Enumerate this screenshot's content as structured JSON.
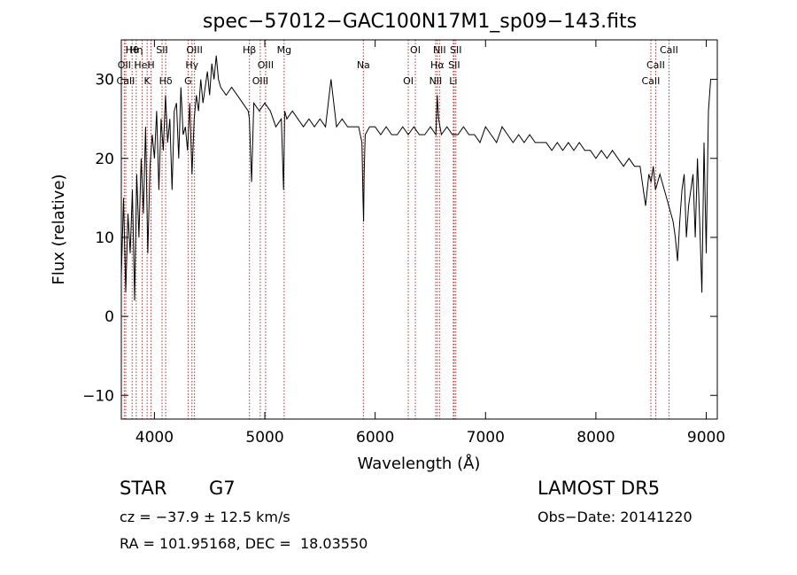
{
  "chart_data": {
    "type": "line",
    "title": "spec−57012−GAC100N17M1_sp09−143.fits",
    "xlabel": "Wavelength (Å)",
    "ylabel": "Flux (relative)",
    "xlim": [
      3700,
      9100
    ],
    "ylim": [
      -13,
      35
    ],
    "x_ticks": [
      4000,
      5000,
      6000,
      7000,
      8000,
      9000
    ],
    "y_ticks": [
      -10,
      0,
      10,
      20,
      30
    ],
    "grid": false,
    "line_color": "#000000",
    "marker_color": "#b03030",
    "series": [
      {
        "x": [
          3700,
          3720,
          3740,
          3760,
          3780,
          3800,
          3820,
          3840,
          3860,
          3880,
          3900,
          3920,
          3940,
          3960,
          3980,
          4000,
          4020,
          4040,
          4060,
          4080,
          4100,
          4120,
          4140,
          4160,
          4180,
          4200,
          4220,
          4240,
          4260,
          4280,
          4300,
          4320,
          4340,
          4360,
          4380,
          4400,
          4420,
          4440,
          4460,
          4480,
          4500,
          4520,
          4540,
          4560,
          4580,
          4600,
          4650,
          4700,
          4750,
          4800,
          4850,
          4860,
          4880,
          4900,
          4950,
          5000,
          5050,
          5100,
          5150,
          5170,
          5180,
          5200,
          5250,
          5300,
          5350,
          5400,
          5450,
          5500,
          5550,
          5600,
          5650,
          5700,
          5750,
          5800,
          5850,
          5880,
          5890,
          5895,
          5900,
          5910,
          5950,
          6000,
          6050,
          6100,
          6150,
          6200,
          6250,
          6300,
          6350,
          6400,
          6450,
          6500,
          6550,
          6562,
          6575,
          6600,
          6650,
          6700,
          6750,
          6800,
          6850,
          6900,
          6950,
          7000,
          7050,
          7100,
          7150,
          7200,
          7250,
          7300,
          7350,
          7400,
          7450,
          7500,
          7550,
          7600,
          7650,
          7700,
          7750,
          7800,
          7850,
          7900,
          7950,
          8000,
          8050,
          8100,
          8150,
          8200,
          8250,
          8300,
          8350,
          8400,
          8450,
          8480,
          8500,
          8520,
          8540,
          8560,
          8580,
          8600,
          8620,
          8640,
          8660,
          8680,
          8700,
          8720,
          8740,
          8760,
          8780,
          8800,
          8820,
          8840,
          8860,
          8880,
          8900,
          8920,
          8940,
          8960,
          8980,
          9000,
          9020,
          9040
        ],
        "y": [
          5,
          15,
          3,
          13,
          8,
          16,
          2,
          18,
          10,
          20,
          13,
          24,
          8,
          19,
          23,
          20,
          26,
          16,
          25,
          21,
          28,
          22,
          25,
          16,
          26,
          27,
          20,
          29,
          23,
          24,
          21,
          27,
          18,
          25,
          28,
          26,
          30,
          27,
          29,
          31,
          28,
          32,
          30,
          33,
          30,
          29,
          28,
          29,
          28,
          27,
          26,
          25,
          17,
          27,
          26,
          27,
          26,
          24,
          25,
          16,
          26,
          25,
          26,
          25,
          24,
          25,
          24,
          25,
          24,
          30,
          24,
          25,
          24,
          24,
          24,
          22,
          15,
          12,
          18,
          23,
          24,
          24,
          23,
          24,
          23,
          23,
          24,
          23,
          24,
          23,
          23,
          24,
          23,
          28,
          25,
          23,
          24,
          23,
          23,
          24,
          23,
          23,
          22,
          24,
          23,
          22,
          24,
          23,
          22,
          23,
          22,
          23,
          22,
          22,
          22,
          21,
          22,
          21,
          22,
          21,
          22,
          21,
          21,
          20,
          21,
          20,
          21,
          20,
          19,
          20,
          19,
          19,
          14,
          18,
          17,
          19,
          16,
          17,
          18,
          17,
          16,
          15,
          14,
          13,
          12,
          10,
          7,
          12,
          16,
          18,
          10,
          14,
          16,
          18,
          10,
          20,
          12,
          3,
          22,
          8,
          26,
          30
        ]
      }
    ],
    "lines": [
      {
        "label": "Hθ",
        "x": 3798
      },
      {
        "label": "OII",
        "x": 3727
      },
      {
        "label": "CaII",
        "x": 3740
      },
      {
        "label": "Hη",
        "x": 3835
      },
      {
        "label": "HeI",
        "x": 3889
      },
      {
        "label": "K",
        "x": 3934
      },
      {
        "label": "SII",
        "x": 4069
      },
      {
        "label": "H",
        "x": 3969
      },
      {
        "label": "Hδ",
        "x": 4102
      },
      {
        "label": "OIII",
        "x": 4363
      },
      {
        "label": "Hγ",
        "x": 4340
      },
      {
        "label": "G",
        "x": 4305
      },
      {
        "label": "Hβ",
        "x": 4861
      },
      {
        "label": "OIII",
        "x": 5007
      },
      {
        "label": "OIII",
        "x": 4959
      },
      {
        "label": "Mg",
        "x": 5175
      },
      {
        "label": "Na",
        "x": 5893
      },
      {
        "label": "OI",
        "x": 6300
      },
      {
        "label": "OI",
        "x": 6364
      },
      {
        "label": "Hα",
        "x": 6563
      },
      {
        "label": "NII",
        "x": 6548
      },
      {
        "label": "NII",
        "x": 6583
      },
      {
        "label": "SII",
        "x": 6716
      },
      {
        "label": "Li",
        "x": 6708
      },
      {
        "label": "SII",
        "x": 6731
      },
      {
        "label": "CaII",
        "x": 8542
      },
      {
        "label": "CaII",
        "x": 8498
      },
      {
        "label": "CaII",
        "x": 8662
      }
    ]
  },
  "info": {
    "class_label": "STAR",
    "subclass": "G7",
    "cz": "cz = −37.9 ± 12.5 km/s",
    "radec": "RA = 101.95168, DEC =  18.03550",
    "survey": "LAMOST DR5",
    "obs_date": "Obs−Date: 20141220"
  }
}
